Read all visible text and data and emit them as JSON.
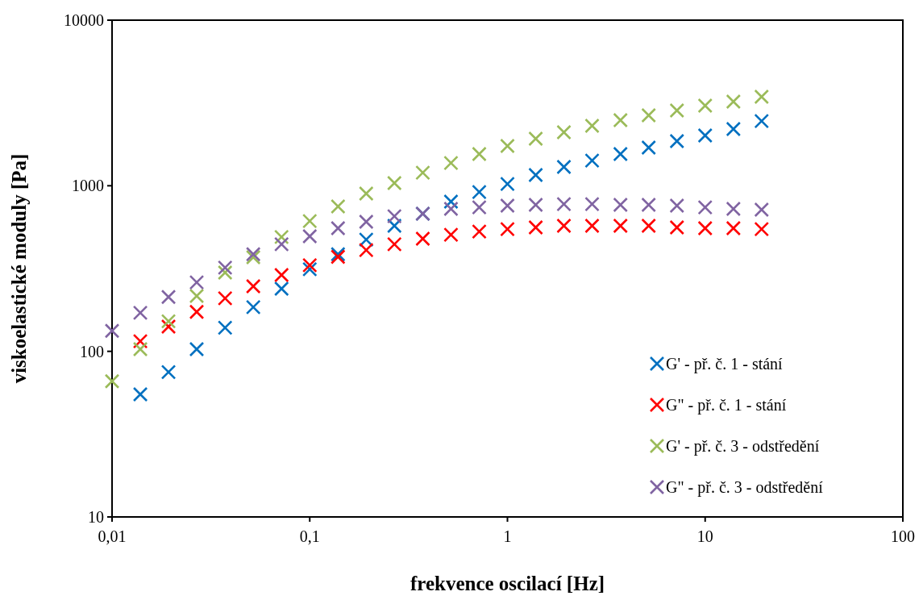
{
  "chart_data": {
    "type": "scatter",
    "xlabel": "frekvence oscilací [Hz]",
    "ylabel": "viskoelastické moduly [Pa]",
    "log": "xy",
    "xlim": [
      0.01,
      100
    ],
    "ylim": [
      10,
      10000
    ],
    "xticks": [
      {
        "value": 0.01,
        "label": "0,01"
      },
      {
        "value": 0.1,
        "label": "0,1"
      },
      1,
      10,
      100
    ],
    "yticks": [
      10,
      100,
      1000,
      10000
    ],
    "grid": false,
    "legend": "bottom right",
    "marker": "cross",
    "series": [
      {
        "name": "G' - př. č. 1 - stání",
        "color": "#0070c0",
        "x": [
          0.0139,
          0.0193,
          0.0268,
          0.0373,
          0.0518,
          0.072,
          0.1,
          0.139,
          0.193,
          0.268,
          0.373,
          0.518,
          0.72,
          1,
          1.39,
          1.93,
          2.68,
          3.73,
          5.18,
          7.2,
          10,
          13.9,
          19.3
        ],
        "values": [
          55,
          75,
          103,
          139,
          185,
          239,
          313,
          386,
          473,
          573,
          678,
          802,
          917,
          1026,
          1161,
          1299,
          1420,
          1554,
          1700,
          1860,
          2012,
          2200,
          2460
        ]
      },
      {
        "name": "G\" - př. č. 1 - stání",
        "color": "#ff0000",
        "x": [
          0.0139,
          0.0193,
          0.0268,
          0.0373,
          0.0518,
          0.072,
          0.1,
          0.139,
          0.193,
          0.268,
          0.373,
          0.518,
          0.72,
          1,
          1.39,
          1.93,
          2.68,
          3.73,
          5.18,
          7.2,
          10,
          13.9,
          19.3
        ],
        "values": [
          115,
          141,
          173,
          209,
          247,
          289,
          331,
          372,
          409,
          443,
          479,
          506,
          529,
          547,
          560,
          573,
          573,
          573,
          573,
          560,
          554,
          554,
          547
        ]
      },
      {
        "name": "G' - př. č. 3 - odstředění",
        "color": "#9bbb59",
        "x": [
          0.01,
          0.0139,
          0.0193,
          0.0268,
          0.0373,
          0.0518,
          0.072,
          0.1,
          0.139,
          0.193,
          0.268,
          0.373,
          0.518,
          0.72,
          1,
          1.39,
          1.93,
          2.68,
          3.73,
          5.18,
          7.2,
          10,
          13.9,
          19.3
        ],
        "values": [
          66,
          103,
          152,
          216,
          299,
          370,
          490,
          612,
          750,
          897,
          1038,
          1200,
          1373,
          1554,
          1738,
          1923,
          2103,
          2301,
          2489,
          2662,
          2848,
          3046,
          3221,
          3446
        ]
      },
      {
        "name": "G\" - př. č. 3 - odstředění",
        "color": "#8064a2",
        "x": [
          0.01,
          0.0139,
          0.0193,
          0.0268,
          0.0373,
          0.0518,
          0.072,
          0.1,
          0.139,
          0.193,
          0.268,
          0.373,
          0.518,
          0.72,
          1,
          1.39,
          1.93,
          2.68,
          3.73,
          5.18,
          7.2,
          10,
          13.9,
          19.3
        ],
        "values": [
          133,
          171,
          213,
          261,
          320,
          386,
          443,
          495,
          554,
          606,
          655,
          678,
          725,
          741,
          758,
          767,
          775,
          775,
          767,
          767,
          758,
          741,
          725,
          717
        ]
      }
    ]
  }
}
